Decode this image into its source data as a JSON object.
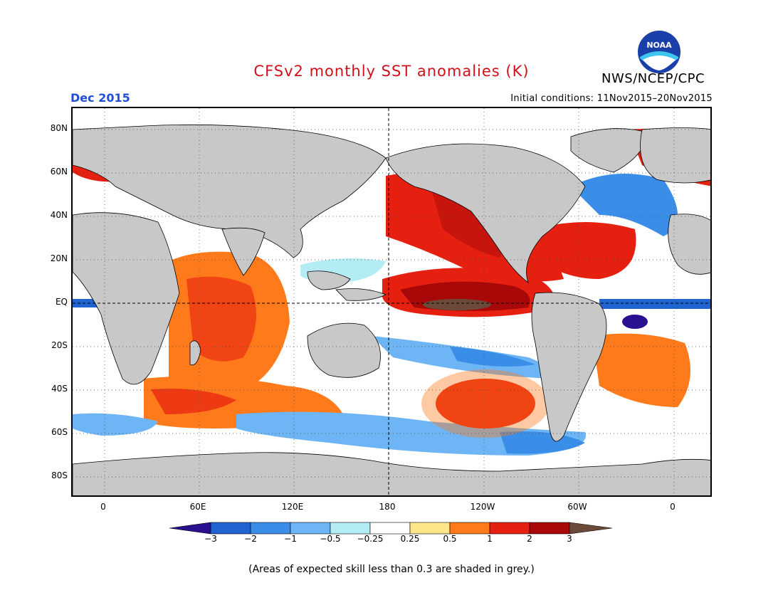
{
  "header": {
    "title": "CFSv2 monthly SST anomalies (K)",
    "agency": "NWS/NCEP/CPC",
    "month": "Dec 2015",
    "initial_conditions": "Initial conditions: 11Nov2015–20Nov2015",
    "logo_text": "NOAA"
  },
  "axes": {
    "lat_labels": [
      "80N",
      "60N",
      "40N",
      "20N",
      "EQ",
      "20S",
      "40S",
      "60S",
      "80S"
    ],
    "lon_labels": [
      "0",
      "60E",
      "120E",
      "180",
      "120W",
      "60W",
      "0"
    ]
  },
  "colorbar": {
    "values": [
      "−3",
      "−2",
      "−1",
      "−0.5",
      "−0.25",
      "0.25",
      "0.5",
      "1",
      "2",
      "3"
    ],
    "colors": [
      "#2a1090",
      "#1f64d0",
      "#3a8ee8",
      "#6eb5f5",
      "#b4ecf4",
      "#ffffff",
      "#fde68a",
      "#ff7a1a",
      "#e62010",
      "#a80808",
      "#6b4a3a"
    ]
  },
  "footnote": "(Areas of expected skill less than 0.3 are shaded in grey.)",
  "colors": {
    "land": "#c8c8c8",
    "title_red": "#d0101a",
    "month_blue": "#1f4fd6"
  }
}
